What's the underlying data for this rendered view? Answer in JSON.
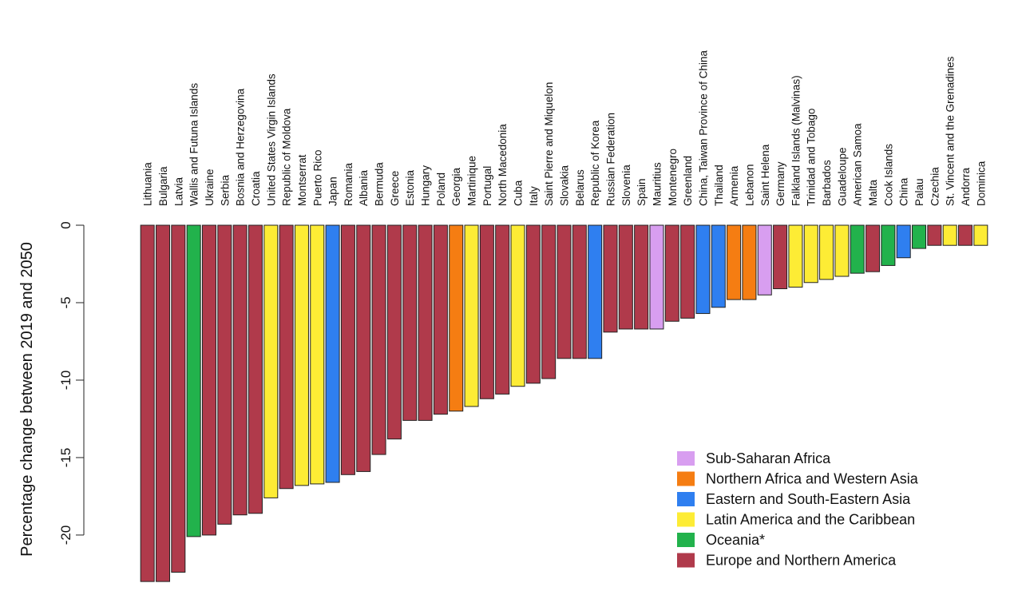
{
  "chart_data": {
    "type": "bar",
    "y_label": "Percentage change between 2019 and 2050",
    "categories": [
      "Lithuania",
      "Bulgaria",
      "Latvia",
      "Wallis and Futuna Islands",
      "Ukraine",
      "Serbia",
      "Bosnia and Herzegovina",
      "Croatia",
      "United States Virgin Islands",
      "Republic of Moldova",
      "Montserrat",
      "Puerto Rico",
      "Japan",
      "Romania",
      "Albania",
      "Bermuda",
      "Greece",
      "Estonia",
      "Hungary",
      "Poland",
      "Georgia",
      "Martinique",
      "Portugal",
      "North Macedonia",
      "Cuba",
      "Italy",
      "Saint Pierre and Miquelon",
      "Slovakia",
      "Belarus",
      "Republic of Korea",
      "Russian Federation",
      "Slovenia",
      "Spain",
      "Mauritius",
      "Montenegro",
      "Greenland",
      "China, Taiwan Province of China",
      "Thailand",
      "Armenia",
      "Lebanon",
      "Saint Helena",
      "Germany",
      "Falkland Islands (Malvinas)",
      "Trinidad and Tobago",
      "Barbados",
      "Guadeloupe",
      "American Samoa",
      "Malta",
      "Cook Islands",
      "China",
      "Palau",
      "Czechia",
      "St. Vincent and the Grenadines",
      "Andorra",
      "Dominica"
    ],
    "series": [
      {
        "name": "Sub-Saharan Africa",
        "color": "#d89ef0",
        "values": [
          null,
          null,
          null,
          null,
          null,
          null,
          null,
          null,
          null,
          null,
          null,
          null,
          null,
          null,
          null,
          null,
          null,
          null,
          null,
          null,
          null,
          null,
          null,
          null,
          null,
          null,
          null,
          null,
          null,
          null,
          null,
          null,
          null,
          -6.7,
          null,
          null,
          null,
          null,
          null,
          null,
          -4.5,
          null,
          null,
          null,
          null,
          null,
          null,
          null,
          null,
          null,
          null,
          null,
          null,
          null,
          null
        ]
      },
      {
        "name": "Northern Africa and Western Asia",
        "color": "#f57d12",
        "values": [
          null,
          null,
          null,
          null,
          null,
          null,
          null,
          null,
          null,
          null,
          null,
          null,
          null,
          null,
          null,
          null,
          null,
          null,
          null,
          null,
          -12.0,
          null,
          null,
          null,
          null,
          null,
          null,
          null,
          null,
          null,
          null,
          null,
          null,
          null,
          null,
          null,
          null,
          null,
          -4.8,
          -4.8,
          null,
          null,
          null,
          null,
          null,
          null,
          null,
          null,
          null,
          null,
          null,
          null,
          null,
          null,
          null
        ]
      },
      {
        "name": "Eastern and South-Eastern Asia",
        "color": "#2f7ff0",
        "values": [
          null,
          null,
          null,
          null,
          null,
          null,
          null,
          null,
          null,
          null,
          null,
          null,
          -16.6,
          null,
          null,
          null,
          null,
          null,
          null,
          null,
          null,
          null,
          null,
          null,
          null,
          null,
          null,
          null,
          null,
          -8.6,
          null,
          null,
          null,
          null,
          null,
          null,
          -5.7,
          -5.3,
          null,
          null,
          null,
          null,
          null,
          null,
          null,
          null,
          null,
          null,
          null,
          -2.1,
          null,
          null,
          null,
          null,
          null
        ]
      },
      {
        "name": "Latin America and the Caribbean",
        "color": "#fdec35",
        "values": [
          null,
          null,
          null,
          null,
          null,
          null,
          null,
          null,
          -17.6,
          null,
          -16.8,
          -16.7,
          null,
          null,
          null,
          null,
          null,
          null,
          null,
          null,
          null,
          -11.7,
          null,
          null,
          -10.4,
          null,
          null,
          null,
          null,
          null,
          null,
          null,
          null,
          null,
          null,
          null,
          null,
          null,
          null,
          null,
          null,
          null,
          -4.0,
          -3.7,
          -3.5,
          -3.3,
          null,
          null,
          null,
          null,
          null,
          null,
          -1.3,
          null,
          -1.3
        ]
      },
      {
        "name": "Oceania*",
        "color": "#22b24c",
        "values": [
          null,
          null,
          null,
          -20.1,
          null,
          null,
          null,
          null,
          null,
          null,
          null,
          null,
          null,
          null,
          null,
          null,
          null,
          null,
          null,
          null,
          null,
          null,
          null,
          null,
          null,
          null,
          null,
          null,
          null,
          null,
          null,
          null,
          null,
          null,
          null,
          null,
          null,
          null,
          null,
          null,
          null,
          null,
          null,
          null,
          null,
          null,
          -3.1,
          null,
          -2.6,
          null,
          -1.5,
          null,
          null,
          null,
          null
        ]
      },
      {
        "name": "Europe and Northern America",
        "color": "#b03a4b",
        "values": [
          -23.0,
          -23.0,
          -22.4,
          null,
          -20.0,
          -19.3,
          -18.7,
          -18.6,
          null,
          -17.0,
          null,
          null,
          null,
          -16.1,
          -15.9,
          -14.8,
          -13.8,
          -12.6,
          -12.6,
          -12.2,
          null,
          null,
          -11.2,
          -10.9,
          null,
          -10.2,
          -9.9,
          -8.6,
          -8.6,
          null,
          -6.9,
          -6.7,
          -6.7,
          null,
          -6.2,
          -6.0,
          null,
          null,
          null,
          null,
          null,
          -4.1,
          null,
          null,
          null,
          null,
          null,
          -3.0,
          null,
          null,
          null,
          -1.3,
          null,
          -1.3,
          null
        ]
      }
    ],
    "ylim": [
      -23.2,
      0
    ],
    "yticks": [
      0,
      -5,
      -10,
      -15,
      -20
    ],
    "legend": "bottom-right"
  }
}
